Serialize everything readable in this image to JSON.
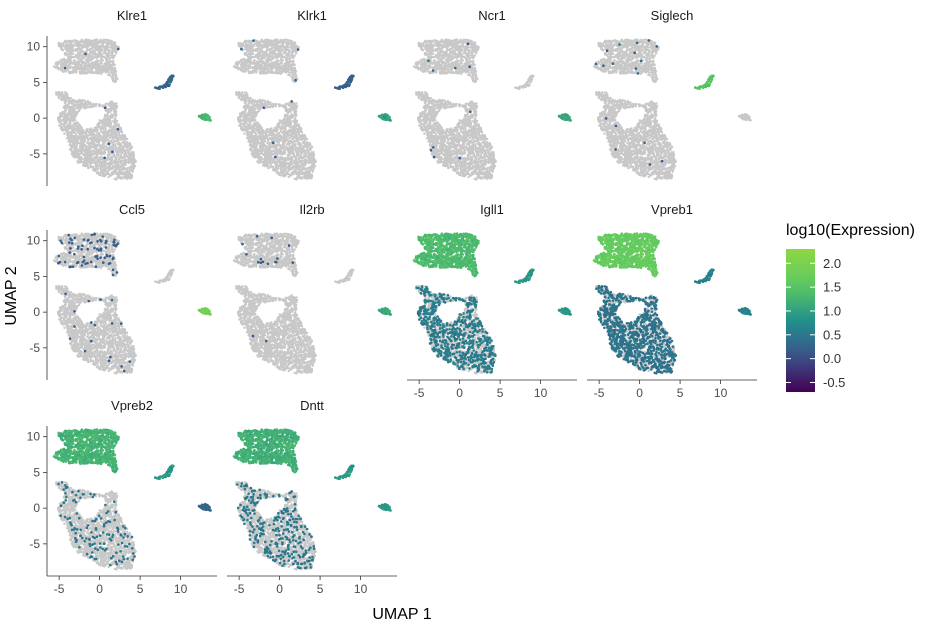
{
  "chart_data": {
    "type": "scatter",
    "subtype": "faceted-umap-feature-plot",
    "xlabel": "UMAP 1",
    "ylabel": "UMAP 2",
    "xlim": [
      -6.5,
      14.5
    ],
    "ylim": [
      -9.5,
      11.5
    ],
    "x_ticks": [
      -5,
      0,
      5,
      10
    ],
    "x_tick_labels": [
      "-5",
      "0",
      "5",
      "10"
    ],
    "y_ticks": [
      -5,
      0,
      5,
      10
    ],
    "y_tick_labels": [
      "-5",
      "0",
      "5",
      "10"
    ],
    "grid": false,
    "background_color": "#c8c8c8",
    "legend": {
      "title": "log10(Expression)",
      "placement": "right",
      "min": -0.7,
      "max": 2.3,
      "ticks": [
        2.0,
        1.5,
        1.0,
        0.5,
        0.0,
        -0.5
      ],
      "tick_labels": [
        "2.0",
        "1.5",
        "1.0",
        "0.5",
        "0.0",
        "-0.5"
      ],
      "colors": [
        "#440154",
        "#3b528b",
        "#21918c",
        "#5ec962",
        "#8fd744"
      ]
    },
    "panels": [
      {
        "title": "Klre1",
        "row": 0,
        "col": 0,
        "levels": {
          "main": null,
          "blob": 0.25,
          "b1": 0.3,
          "b2": 1.3
        },
        "hits": {
          "main": 5,
          "blob": 3
        }
      },
      {
        "title": "Klrk1",
        "row": 0,
        "col": 1,
        "levels": {
          "main": null,
          "blob": 0.25,
          "b1": 0.2,
          "b2": 1.0
        },
        "hits": {
          "main": 4,
          "blob": 4
        }
      },
      {
        "title": "Ncr1",
        "row": 0,
        "col": 2,
        "levels": {
          "main": null,
          "blob": 0.25,
          "b1": null,
          "b2": 1.1
        },
        "hits": {
          "main": 5,
          "blob": 5
        }
      },
      {
        "title": "Siglech",
        "row": 0,
        "col": 3,
        "levels": {
          "main": null,
          "blob": 0.25,
          "b1": 1.5,
          "b2": null
        },
        "hits": {
          "main": 6,
          "blob": 12
        }
      },
      {
        "title": "Ccl5",
        "row": 1,
        "col": 0,
        "levels": {
          "main": null,
          "blob": 0.2,
          "b1": null,
          "b2": 1.9
        },
        "hits": {
          "main": 18,
          "blob": 80
        }
      },
      {
        "title": "Il2rb",
        "row": 1,
        "col": 1,
        "levels": {
          "main": null,
          "blob": 0.2,
          "b1": null,
          "b2": 1.1
        },
        "hits": {
          "main": 2,
          "blob": 14
        }
      },
      {
        "title": "Igll1",
        "row": 1,
        "col": 2,
        "levels": {
          "main": 0.55,
          "blob": 1.35,
          "b1": 0.9,
          "b2": 0.9
        },
        "hits": {
          "main": 0.35,
          "blob": 1
        }
      },
      {
        "title": "Vpreb1",
        "row": 1,
        "col": 3,
        "levels": {
          "main": 0.45,
          "blob": 1.65,
          "b1": 0.6,
          "b2": 0.6
        },
        "hits": {
          "main": 0.45,
          "blob": 1
        }
      },
      {
        "title": "Vpreb2",
        "row": 2,
        "col": 0,
        "levels": {
          "main": 0.5,
          "blob": 1.25,
          "b1": 0.9,
          "b2": 0.3
        },
        "hits": {
          "main": 0.07,
          "blob": 1
        }
      },
      {
        "title": "Dntt",
        "row": 2,
        "col": 1,
        "levels": {
          "main": 0.5,
          "blob": 1.2,
          "b1": 0.9,
          "b2": 0.9
        },
        "hits": {
          "main": 0.15,
          "blob": 1
        }
      }
    ]
  }
}
